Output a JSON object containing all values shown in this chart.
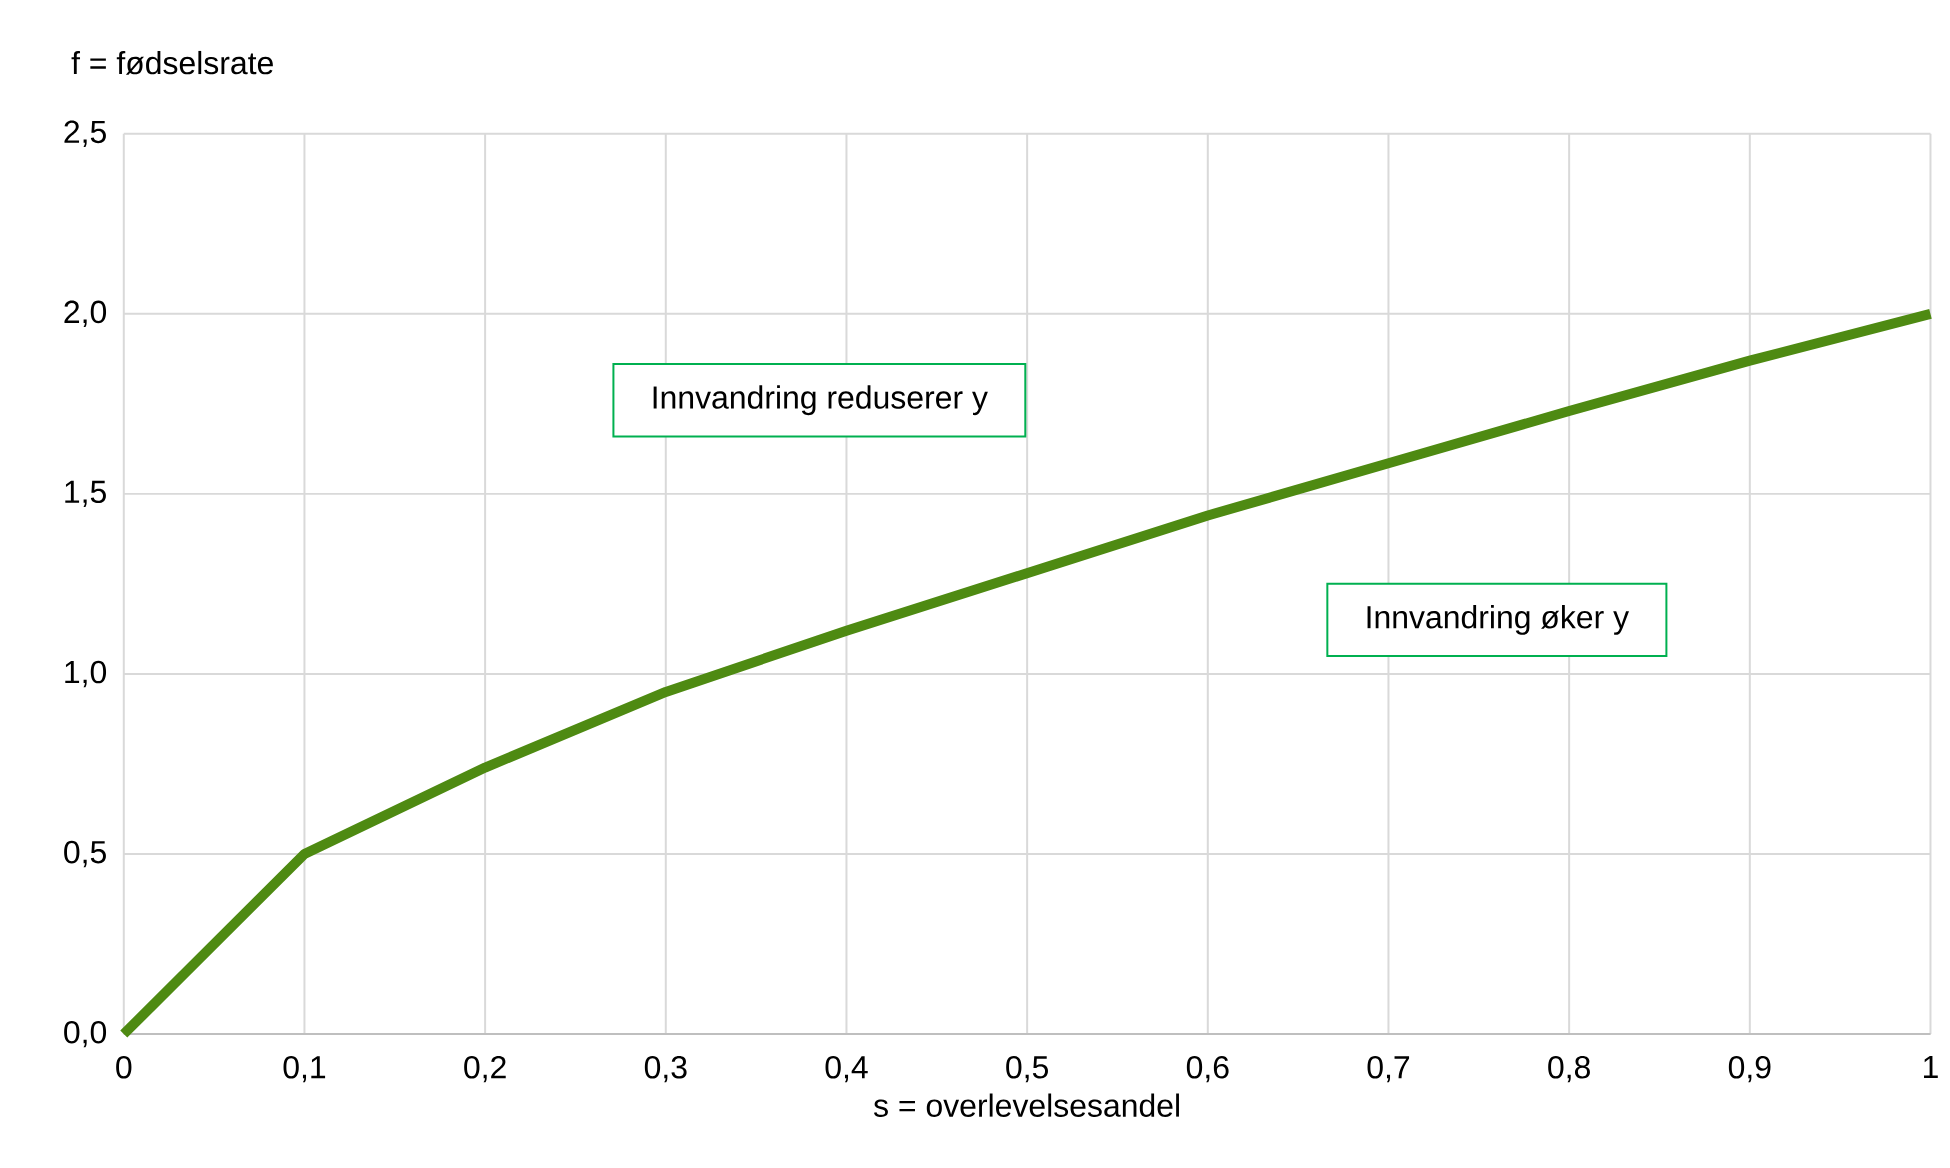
{
  "chart_data": {
    "type": "line",
    "xlabel": "s = overlevelsesandel",
    "ylabel": "f = fødselsrate",
    "x": [
      0,
      0.1,
      0.2,
      0.3,
      0.4,
      0.5,
      0.6,
      0.7,
      0.8,
      0.9,
      1.0
    ],
    "series": [
      {
        "color": "#4e8a12",
        "values": [
          0,
          0.5,
          0.74,
          0.95,
          1.12,
          1.28,
          1.44,
          1.585,
          1.73,
          1.87,
          2.0
        ]
      }
    ],
    "xlim": [
      0,
      1
    ],
    "ylim": [
      0,
      2.5
    ],
    "xticks": [
      0,
      {
        "value": 0.1,
        "label": "0,1"
      },
      {
        "value": 0.2,
        "label": "0,2"
      },
      {
        "value": 0.3,
        "label": "0,3"
      },
      {
        "value": 0.4,
        "label": "0,4"
      },
      {
        "value": 0.5,
        "label": "0,5"
      },
      {
        "value": 0.6,
        "label": "0,6"
      },
      {
        "value": 0.7,
        "label": "0,7"
      },
      {
        "value": 0.8,
        "label": "0,8"
      },
      {
        "value": 0.9,
        "label": "0,9"
      },
      1
    ],
    "yticks": [
      {
        "value": 0,
        "label": "0,0"
      },
      {
        "value": 0.5,
        "label": "0,5"
      },
      {
        "value": 1,
        "label": "1,0"
      },
      {
        "value": 1.5,
        "label": "1,5"
      },
      {
        "value": 2,
        "label": "2,0"
      },
      {
        "value": 2.5,
        "label": "2,5"
      }
    ],
    "grid": true,
    "marker": "none",
    "line_style": "solid",
    "annotations": [
      "Innvandring reduserer y",
      "Innvandring øker y"
    ]
  }
}
